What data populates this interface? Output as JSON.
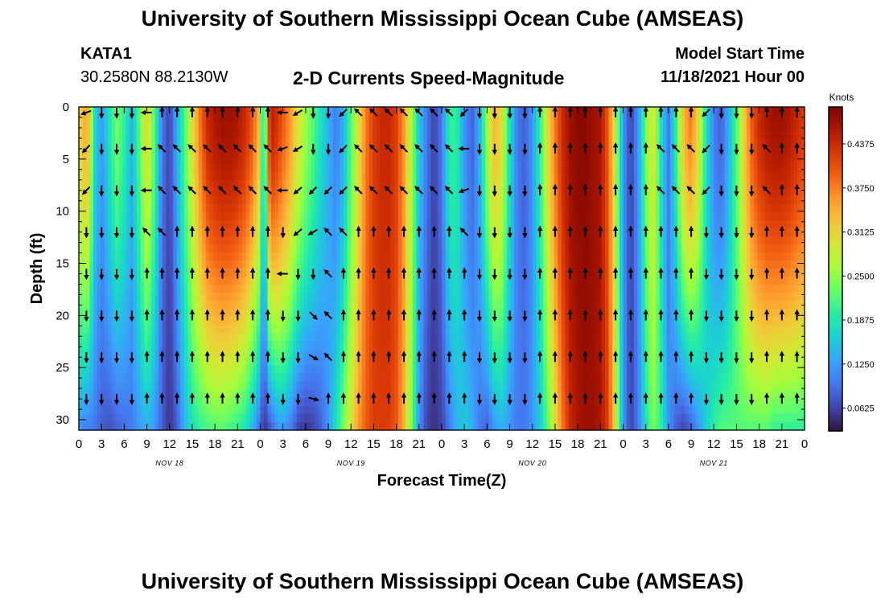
{
  "header": {
    "title": "University of Southern Mississippi Ocean Cube (AMSEAS)",
    "station": "KATA1",
    "coordinates": "30.2580N  88.2130W",
    "subtitle": "2-D Currents Speed-Magnitude",
    "start_label": "Model Start Time",
    "start_value": "11/18/2021 Hour 00"
  },
  "footer": {
    "title": "University of Southern Mississippi Ocean Cube (AMSEAS)"
  },
  "chart_data": {
    "type": "heatmap",
    "xlabel": "Forecast Time(Z)",
    "ylabel": "Depth (ft)",
    "x_range_hours": [
      0,
      96
    ],
    "x_tick_labels": [
      "0",
      "3",
      "6",
      "9",
      "12",
      "15",
      "18",
      "21",
      "0",
      "3",
      "6",
      "9",
      "12",
      "15",
      "18",
      "21",
      "0",
      "3",
      "6",
      "9",
      "12",
      "15",
      "18",
      "21",
      "0",
      "3",
      "6",
      "9",
      "12",
      "15",
      "18",
      "21",
      "0"
    ],
    "date_labels": [
      {
        "hour": 12,
        "label": "NOV 18"
      },
      {
        "hour": 36,
        "label": "NOV 19"
      },
      {
        "hour": 60,
        "label": "NOV 20"
      },
      {
        "hour": 84,
        "label": "NOV 21"
      }
    ],
    "y_range_ft": [
      0,
      31
    ],
    "y_ticks": [
      0,
      5,
      10,
      15,
      20,
      25,
      30
    ],
    "colorbar": {
      "title": "Knots",
      "range": [
        0.03,
        0.49
      ],
      "tick_labels": [
        "0.0625",
        "0.1250",
        "0.1875",
        "0.2500",
        "0.3125",
        "0.3750",
        "0.4375"
      ],
      "colors": [
        "#30123b",
        "#4145ab",
        "#4675ed",
        "#39a2fc",
        "#1bcfd4",
        "#24eca6",
        "#61fc6c",
        "#a4fc3b",
        "#d1e834",
        "#f3c63a",
        "#fe9b2d",
        "#f36315",
        "#d93806",
        "#b11901",
        "#7a0403"
      ]
    },
    "speed_profiles_knots": {
      "hours": [
        0,
        1,
        1.5,
        2,
        3,
        4,
        5,
        6,
        7,
        8,
        9,
        10,
        11,
        12,
        13,
        14,
        15,
        16,
        17,
        18,
        19,
        20,
        21,
        22,
        23,
        24,
        24.5,
        25,
        25.5,
        26,
        26.5,
        27,
        28,
        29,
        30,
        31,
        32,
        33,
        34,
        35,
        36,
        37,
        38,
        39,
        40,
        41,
        42,
        43,
        44,
        45,
        46,
        47,
        48,
        49,
        50,
        51,
        52,
        53,
        54,
        55,
        56,
        57,
        58,
        59,
        60,
        61,
        62,
        63,
        64,
        65,
        66,
        67,
        68,
        69,
        70,
        71,
        72,
        73,
        74,
        75,
        76,
        77,
        78,
        79,
        80,
        81,
        82,
        83,
        84,
        85,
        86,
        87,
        88,
        89,
        90,
        91,
        92,
        93,
        94,
        95,
        96
      ],
      "surface": [
        0.3,
        0.36,
        0.3,
        0.18,
        0.12,
        0.18,
        0.24,
        0.2,
        0.14,
        0.22,
        0.32,
        0.22,
        0.1,
        0.06,
        0.14,
        0.22,
        0.3,
        0.38,
        0.44,
        0.46,
        0.47,
        0.47,
        0.46,
        0.44,
        0.4,
        0.32,
        0.1,
        0.4,
        0.45,
        0.44,
        0.42,
        0.4,
        0.36,
        0.3,
        0.26,
        0.22,
        0.18,
        0.14,
        0.1,
        0.14,
        0.22,
        0.3,
        0.38,
        0.42,
        0.44,
        0.44,
        0.42,
        0.36,
        0.26,
        0.16,
        0.1,
        0.06,
        0.1,
        0.2,
        0.2,
        0.12,
        0.08,
        0.14,
        0.26,
        0.34,
        0.3,
        0.18,
        0.1,
        0.08,
        0.12,
        0.2,
        0.3,
        0.38,
        0.44,
        0.47,
        0.48,
        0.48,
        0.47,
        0.46,
        0.4,
        0.28,
        0.12,
        0.06,
        0.12,
        0.24,
        0.3,
        0.18,
        0.1,
        0.2,
        0.34,
        0.38,
        0.3,
        0.18,
        0.1,
        0.08,
        0.14,
        0.22,
        0.32,
        0.4,
        0.44,
        0.46,
        0.47,
        0.47,
        0.46,
        0.44,
        0.42
      ],
      "bottom": [
        0.12,
        0.1,
        0.1,
        0.1,
        0.08,
        0.07,
        0.08,
        0.09,
        0.1,
        0.12,
        0.14,
        0.12,
        0.08,
        0.05,
        0.08,
        0.14,
        0.18,
        0.2,
        0.21,
        0.22,
        0.22,
        0.21,
        0.2,
        0.18,
        0.14,
        0.08,
        0.05,
        0.06,
        0.08,
        0.1,
        0.12,
        0.12,
        0.1,
        0.06,
        0.05,
        0.06,
        0.08,
        0.12,
        0.18,
        0.24,
        0.3,
        0.36,
        0.4,
        0.42,
        0.42,
        0.42,
        0.4,
        0.34,
        0.24,
        0.12,
        0.06,
        0.05,
        0.06,
        0.1,
        0.14,
        0.16,
        0.14,
        0.1,
        0.08,
        0.12,
        0.14,
        0.12,
        0.1,
        0.1,
        0.12,
        0.16,
        0.22,
        0.3,
        0.38,
        0.44,
        0.46,
        0.47,
        0.47,
        0.46,
        0.42,
        0.3,
        0.12,
        0.06,
        0.1,
        0.18,
        0.24,
        0.2,
        0.12,
        0.08,
        0.06,
        0.08,
        0.12,
        0.16,
        0.2,
        0.22,
        0.22,
        0.22,
        0.22,
        0.22,
        0.22,
        0.22,
        0.2,
        0.2,
        0.2,
        0.2,
        0.2
      ]
    },
    "vector_grid": {
      "rows_depth_ft": [
        0,
        4,
        8,
        12,
        16,
        20,
        24,
        28
      ],
      "columns_hours": [
        1,
        3,
        5,
        7,
        9,
        11,
        13,
        15,
        17,
        19,
        21,
        23,
        25,
        27,
        29,
        31,
        33,
        35,
        37,
        39,
        41,
        43,
        45,
        47,
        49,
        51,
        53,
        55,
        57,
        59,
        61,
        63,
        65,
        67,
        69,
        71,
        73,
        75,
        77,
        79,
        81,
        83,
        85,
        87,
        89,
        91,
        93,
        95
      ],
      "directions_deg_ccw_from_east": [
        [
          200,
          270,
          270,
          270,
          180,
          90,
          90,
          90,
          90,
          90,
          90,
          90,
          90,
          180,
          210,
          270,
          270,
          225,
          135,
          135,
          135,
          135,
          135,
          135,
          135,
          225,
          270,
          270,
          270,
          270,
          90,
          90,
          90,
          90,
          90,
          90,
          90,
          90,
          90,
          90,
          90,
          225,
          270,
          270,
          270,
          90,
          90,
          90
        ],
        [
          225,
          270,
          270,
          270,
          180,
          135,
          135,
          135,
          135,
          135,
          135,
          135,
          135,
          200,
          210,
          270,
          270,
          225,
          135,
          135,
          135,
          135,
          135,
          135,
          135,
          180,
          270,
          270,
          270,
          270,
          90,
          90,
          90,
          90,
          90,
          90,
          90,
          90,
          135,
          135,
          135,
          225,
          270,
          270,
          270,
          135,
          90,
          90
        ],
        [
          225,
          270,
          270,
          270,
          180,
          135,
          135,
          135,
          135,
          135,
          135,
          135,
          135,
          180,
          220,
          225,
          225,
          225,
          135,
          135,
          135,
          135,
          135,
          135,
          135,
          200,
          270,
          270,
          270,
          270,
          90,
          90,
          90,
          90,
          90,
          90,
          90,
          90,
          135,
          135,
          135,
          225,
          270,
          270,
          270,
          135,
          90,
          90
        ],
        [
          270,
          270,
          270,
          270,
          135,
          135,
          90,
          90,
          90,
          90,
          90,
          90,
          90,
          270,
          220,
          210,
          135,
          135,
          90,
          90,
          90,
          90,
          90,
          90,
          90,
          135,
          270,
          270,
          270,
          270,
          90,
          90,
          90,
          90,
          90,
          90,
          90,
          90,
          90,
          90,
          90,
          270,
          270,
          270,
          270,
          90,
          90,
          90
        ],
        [
          270,
          270,
          270,
          270,
          90,
          90,
          90,
          90,
          90,
          90,
          90,
          90,
          90,
          180,
          270,
          270,
          135,
          90,
          90,
          90,
          90,
          90,
          90,
          90,
          90,
          90,
          270,
          270,
          270,
          270,
          90,
          90,
          90,
          90,
          90,
          90,
          90,
          90,
          90,
          90,
          90,
          270,
          270,
          270,
          270,
          90,
          90,
          90
        ],
        [
          270,
          270,
          270,
          270,
          90,
          90,
          90,
          90,
          90,
          90,
          90,
          90,
          90,
          270,
          270,
          315,
          135,
          90,
          90,
          90,
          90,
          90,
          90,
          90,
          90,
          90,
          270,
          270,
          270,
          270,
          90,
          90,
          90,
          90,
          90,
          90,
          90,
          90,
          90,
          90,
          90,
          270,
          270,
          270,
          270,
          90,
          90,
          90
        ],
        [
          270,
          270,
          270,
          270,
          90,
          90,
          90,
          90,
          90,
          90,
          90,
          90,
          90,
          270,
          270,
          330,
          135,
          90,
          90,
          90,
          90,
          90,
          90,
          90,
          90,
          90,
          270,
          270,
          270,
          270,
          90,
          90,
          90,
          90,
          90,
          90,
          90,
          90,
          90,
          90,
          90,
          270,
          270,
          270,
          270,
          90,
          90,
          90
        ],
        [
          270,
          270,
          270,
          270,
          90,
          90,
          90,
          90,
          90,
          90,
          90,
          90,
          90,
          270,
          270,
          345,
          90,
          90,
          90,
          90,
          90,
          90,
          90,
          90,
          90,
          90,
          270,
          270,
          270,
          270,
          90,
          90,
          90,
          90,
          90,
          90,
          90,
          90,
          90,
          90,
          90,
          270,
          270,
          270,
          270,
          90,
          90,
          90
        ]
      ]
    }
  }
}
